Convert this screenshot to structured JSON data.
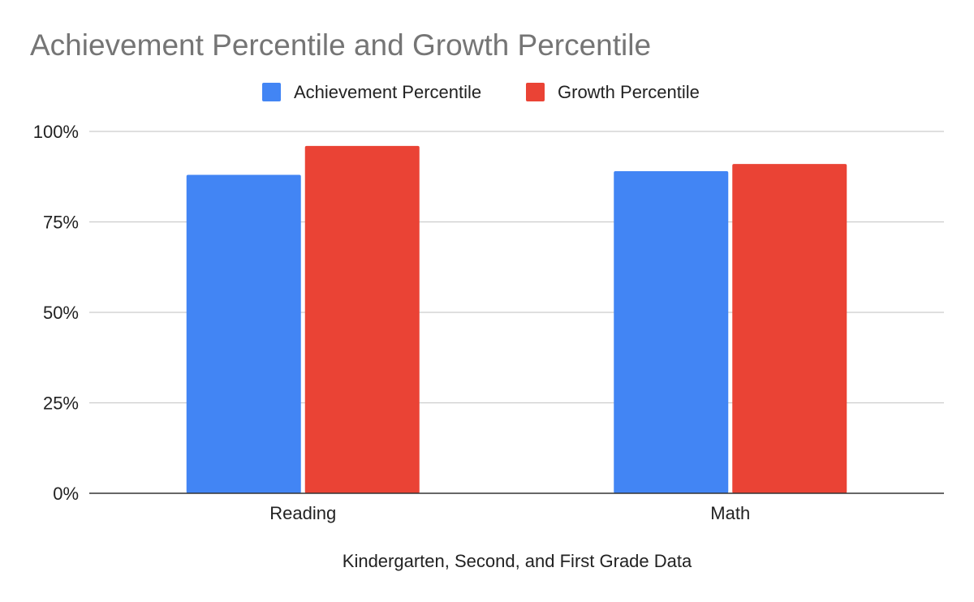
{
  "chart_data": {
    "type": "bar",
    "title": "Achievement Percentile and Growth Percentile",
    "xlabel": "Kindergarten, Second, and First Grade Data",
    "ylabel": "",
    "categories": [
      "Reading",
      "Math"
    ],
    "series": [
      {
        "name": "Achievement Percentile",
        "values": [
          88,
          89
        ],
        "color": "#4285f4"
      },
      {
        "name": "Growth Percentile",
        "values": [
          96,
          91
        ],
        "color": "#ea4335"
      }
    ],
    "ylim": [
      0,
      100
    ],
    "yticks": [
      "0%",
      "25%",
      "50%",
      "75%",
      "100%"
    ],
    "grid": true,
    "legend_position": "top-center"
  }
}
